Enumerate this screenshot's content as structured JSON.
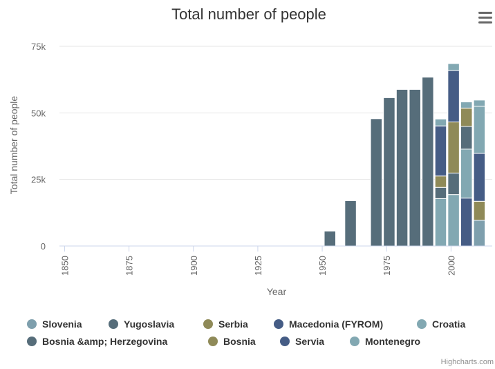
{
  "chart_data": {
    "type": "bar",
    "stacked": true,
    "title": "Total number of people",
    "xlabel": "Year",
    "ylabel": "Total number of people",
    "xlim": [
      1848,
      2016
    ],
    "ylim": [
      0,
      75000
    ],
    "x_ticks": [
      "1850",
      "1875",
      "1900",
      "1925",
      "1950",
      "1975",
      "2000"
    ],
    "x_tick_values": [
      1850,
      1875,
      1900,
      1925,
      1950,
      1975,
      2000
    ],
    "y_ticks": [
      "0",
      "25k",
      "50k",
      "75k"
    ],
    "y_tick_values": [
      0,
      25000,
      50000,
      75000
    ],
    "grid": true,
    "legend_position": "bottom",
    "series": [
      {
        "name": "Slovenia",
        "color": "#7e9fad",
        "points": [
          {
            "x": 2011,
            "y": 9700
          }
        ]
      },
      {
        "name": "Yugoslavia",
        "color": "#566d7a",
        "points": [
          {
            "x": 1953,
            "y": 5600
          },
          {
            "x": 1961,
            "y": 17000
          },
          {
            "x": 1971,
            "y": 47800
          },
          {
            "x": 1976,
            "y": 55700
          },
          {
            "x": 1981,
            "y": 58800
          },
          {
            "x": 1986,
            "y": 58800
          },
          {
            "x": 1991,
            "y": 63400
          }
        ]
      },
      {
        "name": "Serbia",
        "color": "#8f8a58",
        "points": [
          {
            "x": 2011,
            "y": 7100
          }
        ]
      },
      {
        "name": "Macedonia (FYROM)",
        "color": "#455c85",
        "points": [
          {
            "x": 2006,
            "y": 18000
          }
        ]
      },
      {
        "name": "Croatia",
        "color": "#82a8b2",
        "points": [
          {
            "x": 1996,
            "y": 17800
          },
          {
            "x": 2001,
            "y": 19300
          },
          {
            "x": 2006,
            "y": 18400
          }
        ]
      },
      {
        "name": "Bosnia &amp; Herzegovina",
        "color": "#566d7a",
        "points": [
          {
            "x": 1996,
            "y": 4200
          },
          {
            "x": 2001,
            "y": 8100
          },
          {
            "x": 2006,
            "y": 8500
          }
        ]
      },
      {
        "name": "Bosnia",
        "color": "#8f8a58",
        "points": [
          {
            "x": 1996,
            "y": 4300
          },
          {
            "x": 2001,
            "y": 19200
          },
          {
            "x": 2006,
            "y": 6900
          }
        ]
      },
      {
        "name": "Servia",
        "color": "#455c85",
        "points": [
          {
            "x": 1996,
            "y": 18800
          },
          {
            "x": 2001,
            "y": 19300
          },
          {
            "x": 2011,
            "y": 18000
          }
        ]
      },
      {
        "name": "Montenegro",
        "color": "#82a8b2",
        "points": [
          {
            "x": 1996,
            "y": 2600
          },
          {
            "x": 2001,
            "y": 2600
          },
          {
            "x": 2006,
            "y": 2300
          },
          {
            "x": 2011,
            "y": 17700
          },
          {
            "x": 2011.01,
            "y": 2300
          }
        ]
      }
    ]
  },
  "legend": {
    "items": [
      "Slovenia",
      "Yugoslavia",
      "Serbia",
      "Macedonia (FYROM)",
      "Croatia",
      "Bosnia &amp; Herzegovina",
      "Bosnia",
      "Servia",
      "Montenegro"
    ]
  },
  "credits": "Highcharts.com",
  "menu_icon": "hamburger-menu-icon"
}
